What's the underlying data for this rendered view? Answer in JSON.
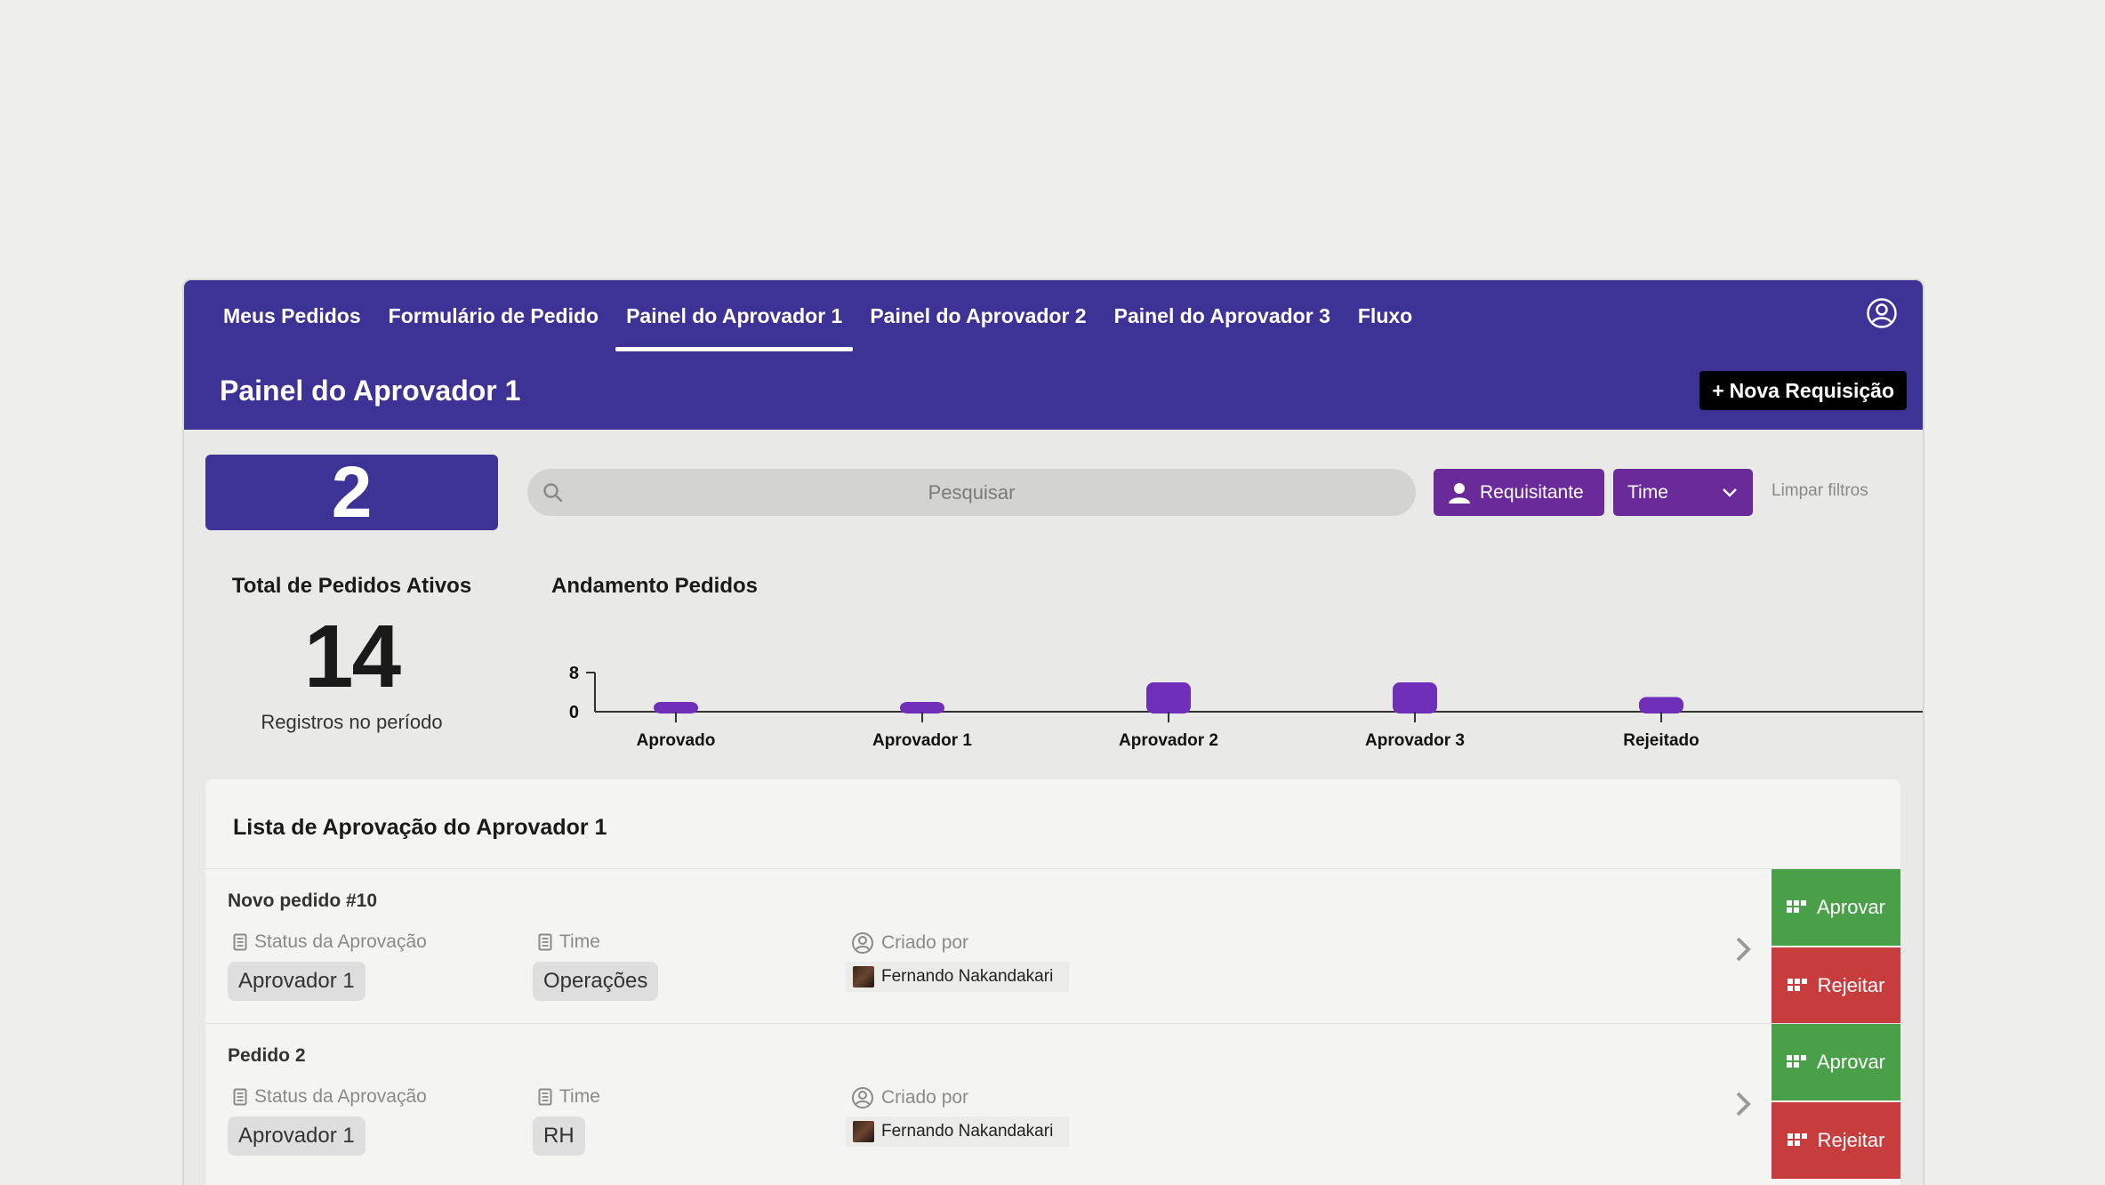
{
  "nav": {
    "tabs": [
      {
        "label": "Meus Pedidos"
      },
      {
        "label": "Formulário de Pedido"
      },
      {
        "label": "Painel do Aprovador 1",
        "active": true
      },
      {
        "label": "Painel do Aprovador 2"
      },
      {
        "label": "Painel do Aprovador 3"
      },
      {
        "label": "Fluxo"
      }
    ],
    "user_icon": "user-circle-icon"
  },
  "header": {
    "title": "Painel do Aprovador 1",
    "new_button": "Nova Requisição",
    "new_button_icon": "+"
  },
  "summary": {
    "count": "2",
    "total_title": "Total de Pedidos Ativos",
    "total_number": "14",
    "total_sub": "Registros no período"
  },
  "filters": {
    "search_placeholder": "Pesquisar",
    "requester_label": "Requisitante",
    "team_label": "Time",
    "clear_label": "Limpar filtros"
  },
  "chart_title": "Andamento Pedidos",
  "chart_data": {
    "type": "bar",
    "categories": [
      "Aprovado",
      "Aprovador 1",
      "Aprovador 2",
      "Aprovador 3",
      "Rejeitado"
    ],
    "values": [
      2,
      2,
      6,
      6,
      3
    ],
    "ylim": [
      0,
      8
    ],
    "yticks": [
      "0",
      "8"
    ],
    "color": "#6f2fb8"
  },
  "list": {
    "title": "Lista de Aprovação do Aprovador 1",
    "status_label": "Status da Aprovação",
    "team_label": "Time",
    "creator_label": "Criado por",
    "approve_label": "Aprovar",
    "reject_label": "Rejeitar",
    "rows": [
      {
        "name": "Novo pedido #10",
        "status": "Aprovador 1",
        "team": "Operações",
        "creator": "Fernando Nakandakari"
      },
      {
        "name": "Pedido 2",
        "status": "Aprovador 1",
        "team": "RH",
        "creator": "Fernando Nakandakari"
      }
    ]
  },
  "colors": {
    "header": "#3d3296",
    "accent_purple": "#6a2a9a",
    "approve": "#4a9f49",
    "reject": "#c73c3c"
  }
}
